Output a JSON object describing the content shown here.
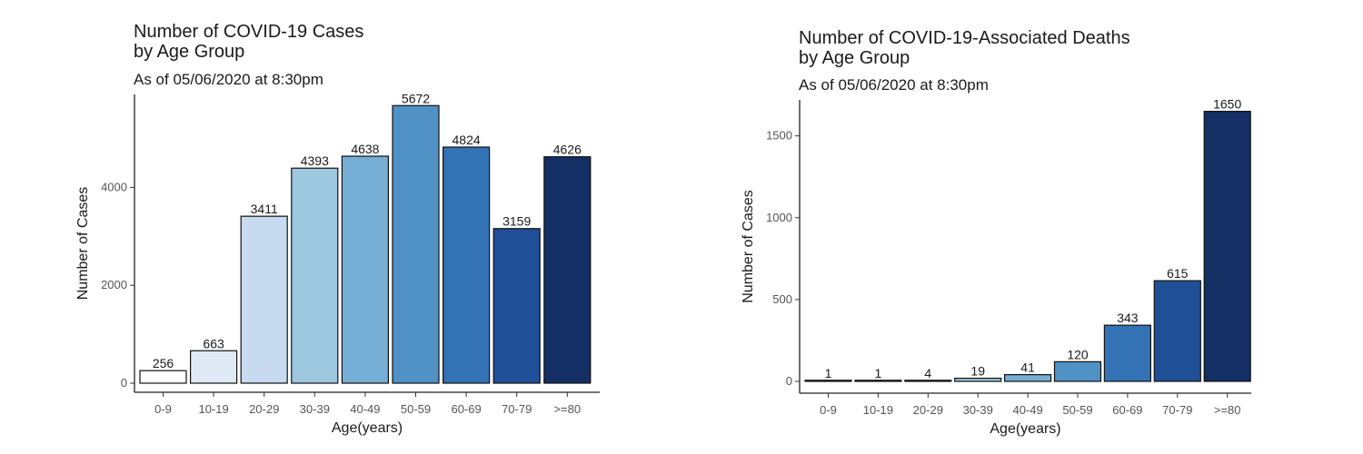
{
  "chart_data": [
    {
      "type": "bar",
      "title_line1": "Number of COVID-19 Cases",
      "title_line2": "by Age Group",
      "subtitle": "As of 05/06/2020 at 8:30pm",
      "xlabel": "Age(years)",
      "ylabel": "Number of Cases",
      "categories": [
        "0-9",
        "10-19",
        "20-29",
        "30-39",
        "40-49",
        "50-59",
        "60-69",
        "70-79",
        ">=80"
      ],
      "values": [
        256,
        663,
        3411,
        4393,
        4638,
        5672,
        4824,
        3159,
        4626
      ],
      "colors": [
        "#ffffff",
        "#dfe9f6",
        "#c8daef",
        "#9ec7e0",
        "#76aed5",
        "#5091c6",
        "#3372b4",
        "#1f4f96",
        "#132f63"
      ],
      "ylim": [
        0,
        5900
      ],
      "yticks": [
        0,
        2000,
        4000
      ],
      "grid": false
    },
    {
      "type": "bar",
      "title_line1": "Number of COVID-19-Associated Deaths",
      "title_line2": "by Age Group",
      "subtitle": "As of 05/06/2020 at 8:30pm",
      "xlabel": "Age(years)",
      "ylabel": "Number of Cases",
      "categories": [
        "0-9",
        "10-19",
        "20-29",
        "30-39",
        "40-49",
        "50-59",
        "60-69",
        "70-79",
        ">=80"
      ],
      "values": [
        1,
        1,
        4,
        19,
        41,
        120,
        343,
        615,
        1650
      ],
      "colors": [
        "#ffffff",
        "#dfe9f6",
        "#0b0b0b",
        "#9ec7e0",
        "#76aed5",
        "#5091c6",
        "#3372b4",
        "#1f4f96",
        "#132f63"
      ],
      "ylim": [
        0,
        1720
      ],
      "yticks": [
        0,
        500,
        1000,
        1500
      ],
      "grid": false
    }
  ]
}
